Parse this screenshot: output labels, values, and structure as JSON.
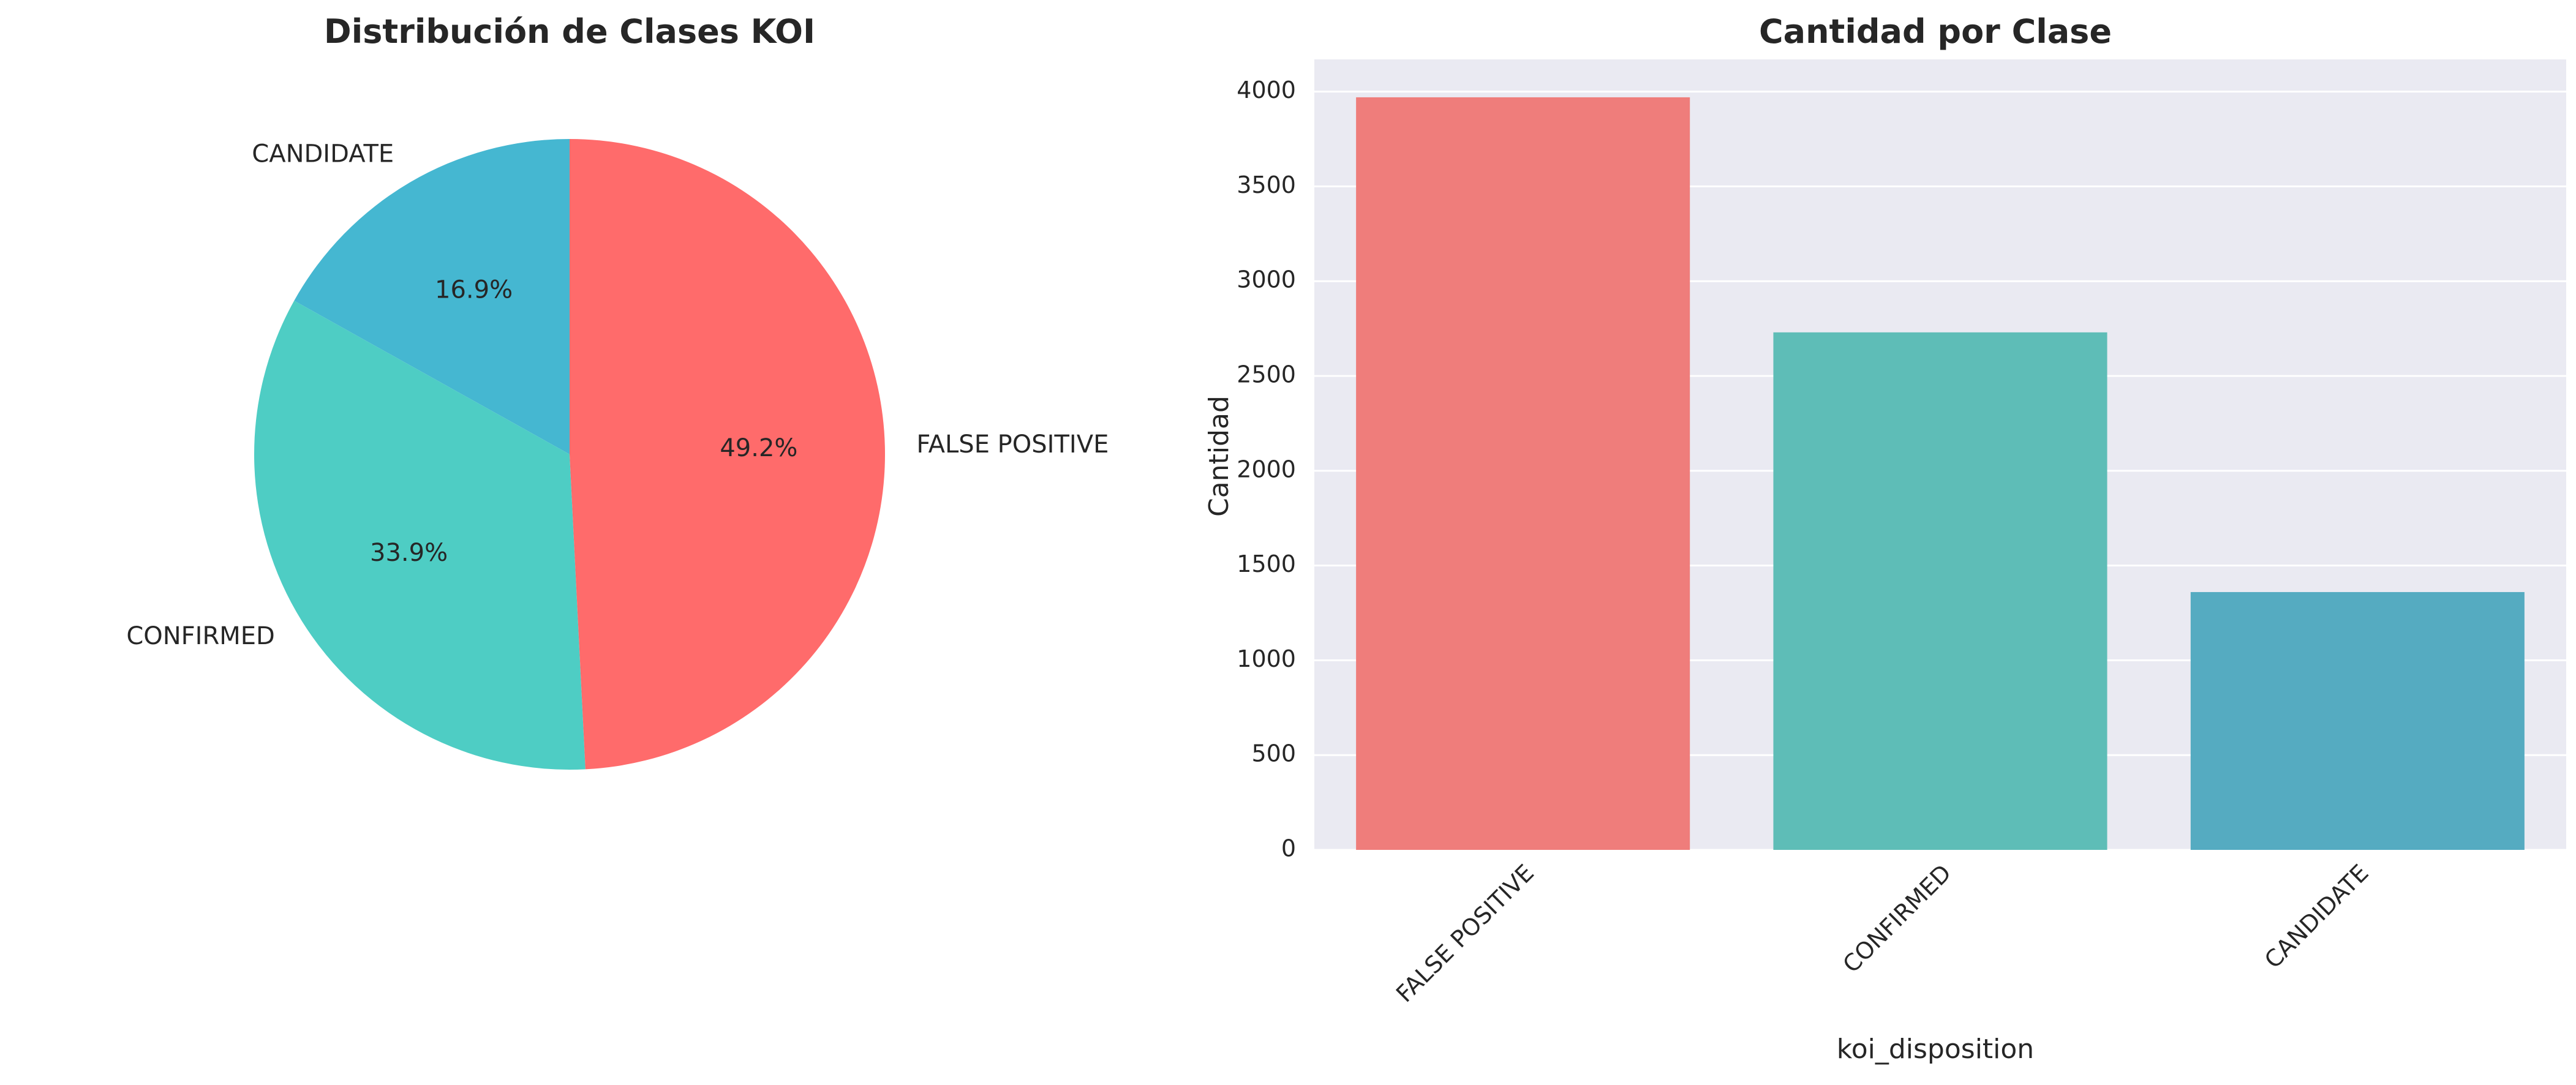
{
  "colors": {
    "false_positive": "#ff6b6b",
    "confirmed": "#4ecdc4",
    "candidate": "#45b7d1",
    "plot_background": "#eaeaf2",
    "grid": "#ffffff",
    "text": "#262626"
  },
  "chart_data": [
    {
      "type": "pie",
      "title": "Distribución de Clases KOI",
      "slices": [
        {
          "label": "CANDIDATE",
          "value": 16.9,
          "pct_label": "16.9%"
        },
        {
          "label": "CONFIRMED",
          "value": 33.9,
          "pct_label": "33.9%"
        },
        {
          "label": "FALSE POSITIVE",
          "value": 49.2,
          "pct_label": "49.2%"
        }
      ],
      "start_angle_deg": 90,
      "direction": "counterclockwise"
    },
    {
      "type": "bar",
      "title": "Cantidad por Clase",
      "categories": [
        "FALSE POSITIVE",
        "CONFIRMED",
        "CANDIDATE"
      ],
      "values": [
        3970,
        2730,
        1360
      ],
      "xlabel": "koi_disposition",
      "ylabel": "Cantidad",
      "ylim": [
        0,
        4170
      ],
      "yticks": [
        0,
        500,
        1000,
        1500,
        2000,
        2500,
        3000,
        3500,
        4000
      ],
      "grid": true,
      "tick_rotation_deg": -45
    }
  ]
}
